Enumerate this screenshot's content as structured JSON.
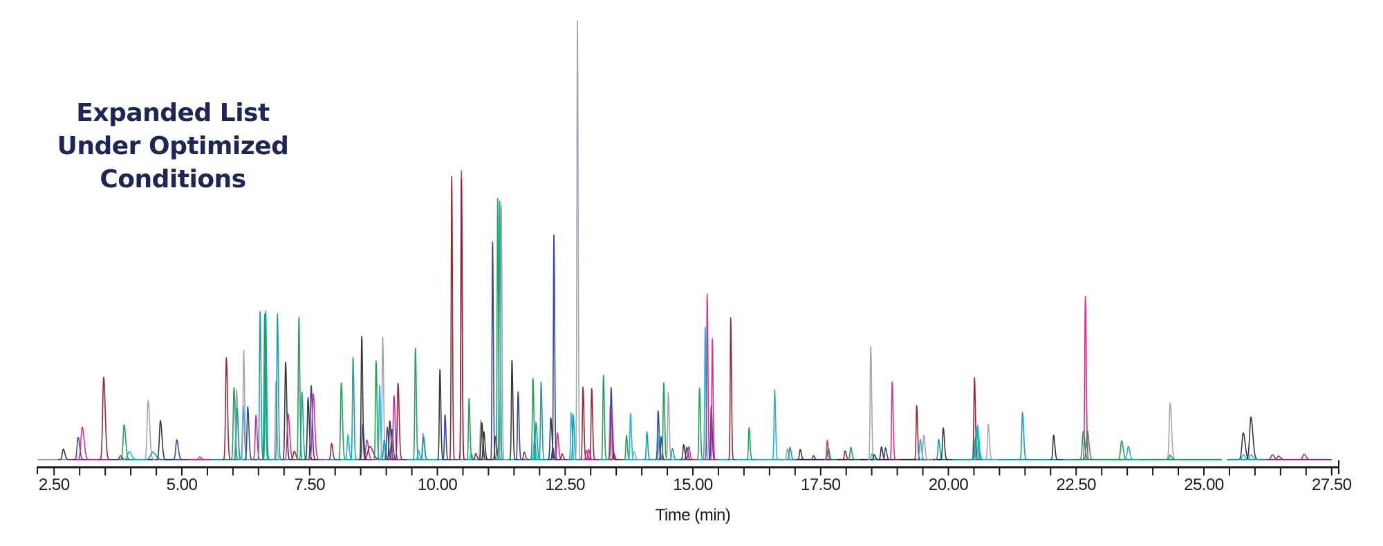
{
  "title": {
    "lines": [
      "Expanded List",
      "Under Optimized",
      "Conditions"
    ]
  },
  "axis": {
    "x_title": "Time (min)",
    "tick_labels": [
      "2.50",
      "5.00",
      "7.50",
      "10.00",
      "12.50",
      "15.00",
      "17.50",
      "20.00",
      "22.50",
      "25.00",
      "27.50"
    ]
  },
  "colors": {
    "title": "#1c2755",
    "axis": "#1a1a1a",
    "maroon": "#8b1f2b",
    "magenta": "#e0208a",
    "green": "#0fa14a",
    "cyan": "#12b0e0",
    "teal": "#0a9aa8",
    "navy": "#2a3aa0",
    "grey": "#9aa3ad",
    "black": "#2b2b2b",
    "purple": "#8a2a7a"
  },
  "chart_data": {
    "type": "line",
    "title": "Expanded List Under Optimized Conditions",
    "xlabel": "Time (min)",
    "ylabel": "",
    "xlim": [
      2.18,
      27.62
    ],
    "ylim": [
      0,
      100
    ],
    "grid": false,
    "legend": "none",
    "x_ticks": [
      2.5,
      5.0,
      7.5,
      10.0,
      12.5,
      15.0,
      17.5,
      20.0,
      22.5,
      25.0,
      27.5
    ],
    "minor_tick_step": 0.5,
    "y_units": "relative intensity (% of tallest peak)",
    "peaks": [
      {
        "t": 2.68,
        "h": 2.4,
        "color": "black",
        "w": 0.02
      },
      {
        "t": 2.97,
        "h": 5.1,
        "color": "navy",
        "w": 0.02
      },
      {
        "t": 3.05,
        "h": 7.4,
        "color": "magenta",
        "w": 0.025
      },
      {
        "t": 3.47,
        "h": 18.8,
        "color": "maroon",
        "w": 0.02
      },
      {
        "t": 3.8,
        "h": 0.9,
        "color": "maroon",
        "w": 0.02
      },
      {
        "t": 3.87,
        "h": 7.9,
        "color": "green",
        "w": 0.02
      },
      {
        "t": 3.97,
        "h": 1.8,
        "color": "cyan",
        "w": 0.03
      },
      {
        "t": 4.34,
        "h": 13.5,
        "color": "grey",
        "w": 0.02
      },
      {
        "t": 4.43,
        "h": 1.7,
        "color": "teal",
        "w": 0.04
      },
      {
        "t": 4.58,
        "h": 8.9,
        "color": "black",
        "w": 0.02
      },
      {
        "t": 4.9,
        "h": 4.5,
        "color": "navy",
        "w": 0.02
      },
      {
        "t": 5.35,
        "h": 0.6,
        "color": "magenta",
        "w": 0.02
      },
      {
        "t": 5.87,
        "h": 23.2,
        "color": "maroon",
        "w": 0.015
      },
      {
        "t": 6.02,
        "h": 16.4,
        "color": "green",
        "w": 0.015
      },
      {
        "t": 6.07,
        "h": 15.9,
        "color": "grey",
        "w": 0.015
      },
      {
        "t": 6.08,
        "h": 11.7,
        "color": "teal",
        "w": 0.015
      },
      {
        "t": 6.2,
        "h": 12.3,
        "color": "cyan",
        "w": 0.015
      },
      {
        "t": 6.21,
        "h": 24.9,
        "color": "grey",
        "w": 0.012
      },
      {
        "t": 6.29,
        "h": 12.0,
        "color": "navy",
        "w": 0.015
      },
      {
        "t": 6.45,
        "h": 10.1,
        "color": "magenta",
        "w": 0.015
      },
      {
        "t": 6.53,
        "h": 33.7,
        "color": "teal",
        "w": 0.012
      },
      {
        "t": 6.62,
        "h": 33.2,
        "color": "green",
        "w": 0.012
      },
      {
        "t": 6.64,
        "h": 33.9,
        "color": "teal",
        "w": 0.012
      },
      {
        "t": 6.84,
        "h": 17.7,
        "color": "grey",
        "w": 0.012
      },
      {
        "t": 6.87,
        "h": 33.2,
        "color": "teal",
        "w": 0.012
      },
      {
        "t": 7.03,
        "h": 22.2,
        "color": "black",
        "w": 0.015
      },
      {
        "t": 7.08,
        "h": 10.4,
        "color": "magenta",
        "w": 0.02
      },
      {
        "t": 7.2,
        "h": 1.9,
        "color": "maroon",
        "w": 0.02
      },
      {
        "t": 7.29,
        "h": 32.4,
        "color": "green",
        "w": 0.012
      },
      {
        "t": 7.35,
        "h": 15.4,
        "color": "teal",
        "w": 0.015
      },
      {
        "t": 7.47,
        "h": 14.1,
        "color": "black",
        "w": 0.015
      },
      {
        "t": 7.53,
        "h": 16.9,
        "color": "navy",
        "w": 0.015
      },
      {
        "t": 7.57,
        "h": 15.0,
        "color": "magenta",
        "w": 0.02
      },
      {
        "t": 7.93,
        "h": 3.7,
        "color": "maroon",
        "w": 0.015
      },
      {
        "t": 8.12,
        "h": 17.5,
        "color": "green",
        "w": 0.015
      },
      {
        "t": 8.25,
        "h": 5.6,
        "color": "cyan",
        "w": 0.015
      },
      {
        "t": 8.35,
        "h": 23.3,
        "color": "teal",
        "w": 0.012
      },
      {
        "t": 8.52,
        "h": 28.1,
        "color": "black",
        "w": 0.012
      },
      {
        "t": 8.54,
        "h": 8.0,
        "color": "navy",
        "w": 0.015
      },
      {
        "t": 8.62,
        "h": 4.5,
        "color": "magenta",
        "w": 0.02
      },
      {
        "t": 8.68,
        "h": 3.0,
        "color": "maroon",
        "w": 0.04
      },
      {
        "t": 8.8,
        "h": 22.5,
        "color": "green",
        "w": 0.012
      },
      {
        "t": 8.87,
        "h": 16.9,
        "color": "cyan",
        "w": 0.012
      },
      {
        "t": 8.93,
        "h": 27.9,
        "color": "grey",
        "w": 0.012
      },
      {
        "t": 8.96,
        "h": 4.5,
        "color": "teal",
        "w": 0.015
      },
      {
        "t": 9.02,
        "h": 7.4,
        "color": "navy",
        "w": 0.015
      },
      {
        "t": 9.07,
        "h": 8.8,
        "color": "black",
        "w": 0.015
      },
      {
        "t": 9.11,
        "h": 6.8,
        "color": "navy",
        "w": 0.015
      },
      {
        "t": 9.15,
        "h": 14.6,
        "color": "magenta",
        "w": 0.015
      },
      {
        "t": 9.23,
        "h": 17.4,
        "color": "maroon",
        "w": 0.015
      },
      {
        "t": 9.57,
        "h": 25.4,
        "color": "green",
        "w": 0.012
      },
      {
        "t": 9.63,
        "h": 2.1,
        "color": "cyan",
        "w": 0.015
      },
      {
        "t": 9.72,
        "h": 6.0,
        "color": "grey",
        "w": 0.015
      },
      {
        "t": 9.73,
        "h": 5.2,
        "color": "teal",
        "w": 0.015
      },
      {
        "t": 10.05,
        "h": 20.5,
        "color": "black",
        "w": 0.012
      },
      {
        "t": 10.15,
        "h": 10.2,
        "color": "navy",
        "w": 0.012
      },
      {
        "t": 10.28,
        "h": 64.5,
        "color": "maroon",
        "w": 0.01
      },
      {
        "t": 10.47,
        "h": 65.8,
        "color": "magenta",
        "w": 0.01
      },
      {
        "t": 10.47,
        "h": 64.0,
        "color": "maroon",
        "w": 0.01
      },
      {
        "t": 10.62,
        "h": 13.9,
        "color": "green",
        "w": 0.012
      },
      {
        "t": 10.66,
        "h": 1.4,
        "color": "cyan",
        "w": 0.015
      },
      {
        "t": 10.75,
        "h": 1.4,
        "color": "maroon",
        "w": 0.015
      },
      {
        "t": 10.85,
        "h": 9.0,
        "color": "grey",
        "w": 0.015
      },
      {
        "t": 10.87,
        "h": 8.4,
        "color": "black",
        "w": 0.015
      },
      {
        "t": 10.91,
        "h": 6.3,
        "color": "black",
        "w": 0.015
      },
      {
        "t": 11.08,
        "h": 49.6,
        "color": "navy",
        "w": 0.01
      },
      {
        "t": 11.14,
        "h": 5.3,
        "color": "maroon",
        "w": 0.015
      },
      {
        "t": 11.18,
        "h": 59.5,
        "color": "green",
        "w": 0.01
      },
      {
        "t": 11.22,
        "h": 58.9,
        "color": "teal",
        "w": 0.01
      },
      {
        "t": 11.25,
        "h": 58.0,
        "color": "grey",
        "w": 0.01
      },
      {
        "t": 11.46,
        "h": 22.6,
        "color": "black",
        "w": 0.012
      },
      {
        "t": 11.58,
        "h": 15.4,
        "color": "navy",
        "w": 0.012
      },
      {
        "t": 11.7,
        "h": 1.7,
        "color": "maroon",
        "w": 0.015
      },
      {
        "t": 11.87,
        "h": 18.5,
        "color": "green",
        "w": 0.012
      },
      {
        "t": 11.9,
        "h": 4.6,
        "color": "cyan",
        "w": 0.015
      },
      {
        "t": 11.93,
        "h": 8.4,
        "color": "teal",
        "w": 0.015
      },
      {
        "t": 12.03,
        "h": 17.7,
        "color": "teal",
        "w": 0.012
      },
      {
        "t": 12.22,
        "h": 9.5,
        "color": "black",
        "w": 0.015
      },
      {
        "t": 12.26,
        "h": 2.8,
        "color": "navy",
        "w": 0.015
      },
      {
        "t": 12.28,
        "h": 51.2,
        "color": "navy",
        "w": 0.01
      },
      {
        "t": 12.35,
        "h": 6.1,
        "color": "magenta",
        "w": 0.015
      },
      {
        "t": 12.44,
        "h": 1.3,
        "color": "maroon",
        "w": 0.015
      },
      {
        "t": 12.62,
        "h": 10.7,
        "color": "cyan",
        "w": 0.012
      },
      {
        "t": 12.66,
        "h": 10.2,
        "color": "teal",
        "w": 0.012
      },
      {
        "t": 12.74,
        "h": 100.0,
        "color": "grey",
        "w": 0.01
      },
      {
        "t": 12.85,
        "h": 16.5,
        "color": "maroon",
        "w": 0.012
      },
      {
        "t": 12.92,
        "h": 2.1,
        "color": "magenta",
        "w": 0.015
      },
      {
        "t": 12.96,
        "h": 2.3,
        "color": "magenta",
        "w": 0.015
      },
      {
        "t": 13.02,
        "h": 16.2,
        "color": "maroon",
        "w": 0.012
      },
      {
        "t": 13.25,
        "h": 19.2,
        "color": "green",
        "w": 0.012
      },
      {
        "t": 13.38,
        "h": 12.3,
        "color": "grey",
        "w": 0.012
      },
      {
        "t": 13.4,
        "h": 16.4,
        "color": "navy",
        "w": 0.012
      },
      {
        "t": 13.41,
        "h": 11.3,
        "color": "magenta",
        "w": 0.015
      },
      {
        "t": 13.45,
        "h": 1.4,
        "color": "maroon",
        "w": 0.015
      },
      {
        "t": 13.7,
        "h": 5.5,
        "color": "green",
        "w": 0.012
      },
      {
        "t": 13.78,
        "h": 10.5,
        "color": "cyan",
        "w": 0.012
      },
      {
        "t": 13.85,
        "h": 1.8,
        "color": "grey",
        "w": 0.015
      },
      {
        "t": 14.1,
        "h": 6.3,
        "color": "teal",
        "w": 0.012
      },
      {
        "t": 14.32,
        "h": 11.1,
        "color": "navy",
        "w": 0.012
      },
      {
        "t": 14.34,
        "h": 6.1,
        "color": "cyan",
        "w": 0.012
      },
      {
        "t": 14.38,
        "h": 5.2,
        "color": "maroon",
        "w": 0.012
      },
      {
        "t": 14.43,
        "h": 17.5,
        "color": "green",
        "w": 0.012
      },
      {
        "t": 14.52,
        "h": 15.3,
        "color": "grey",
        "w": 0.012
      },
      {
        "t": 14.6,
        "h": 2.5,
        "color": "teal",
        "w": 0.015
      },
      {
        "t": 14.82,
        "h": 3.4,
        "color": "black",
        "w": 0.015
      },
      {
        "t": 14.88,
        "h": 2.8,
        "color": "navy",
        "w": 0.015
      },
      {
        "t": 14.92,
        "h": 2.9,
        "color": "magenta",
        "w": 0.015
      },
      {
        "t": 15.13,
        "h": 16.3,
        "color": "green",
        "w": 0.012
      },
      {
        "t": 15.24,
        "h": 30.2,
        "color": "cyan",
        "w": 0.01
      },
      {
        "t": 15.28,
        "h": 37.7,
        "color": "magenta",
        "w": 0.01
      },
      {
        "t": 15.36,
        "h": 12.3,
        "color": "navy",
        "w": 0.012
      },
      {
        "t": 15.38,
        "h": 27.6,
        "color": "magenta",
        "w": 0.01
      },
      {
        "t": 15.74,
        "h": 32.3,
        "color": "maroon",
        "w": 0.01
      },
      {
        "t": 16.1,
        "h": 7.3,
        "color": "green",
        "w": 0.012
      },
      {
        "t": 16.6,
        "h": 15.9,
        "color": "cyan",
        "w": 0.012
      },
      {
        "t": 16.85,
        "h": 2.5,
        "color": "grey",
        "w": 0.015
      },
      {
        "t": 16.9,
        "h": 2.8,
        "color": "teal",
        "w": 0.015
      },
      {
        "t": 17.1,
        "h": 2.3,
        "color": "black",
        "w": 0.015
      },
      {
        "t": 17.36,
        "h": 0.9,
        "color": "navy",
        "w": 0.015
      },
      {
        "t": 17.63,
        "h": 4.4,
        "color": "magenta",
        "w": 0.012
      },
      {
        "t": 17.65,
        "h": 2.7,
        "color": "green",
        "w": 0.015
      },
      {
        "t": 17.98,
        "h": 2.0,
        "color": "maroon",
        "w": 0.015
      },
      {
        "t": 18.09,
        "h": 2.8,
        "color": "green",
        "w": 0.015
      },
      {
        "t": 18.48,
        "h": 25.8,
        "color": "grey",
        "w": 0.012
      },
      {
        "t": 18.5,
        "h": 1.3,
        "color": "cyan",
        "w": 0.015
      },
      {
        "t": 18.55,
        "h": 1.1,
        "color": "black",
        "w": 0.015
      },
      {
        "t": 18.69,
        "h": 2.9,
        "color": "black",
        "w": 0.015
      },
      {
        "t": 18.77,
        "h": 2.7,
        "color": "navy",
        "w": 0.015
      },
      {
        "t": 18.9,
        "h": 17.7,
        "color": "magenta",
        "w": 0.012
      },
      {
        "t": 19.38,
        "h": 12.3,
        "color": "maroon",
        "w": 0.012
      },
      {
        "t": 19.45,
        "h": 4.6,
        "color": "cyan",
        "w": 0.015
      },
      {
        "t": 19.52,
        "h": 5.6,
        "color": "grey",
        "w": 0.015
      },
      {
        "t": 19.81,
        "h": 4.6,
        "color": "teal",
        "w": 0.015
      },
      {
        "t": 19.9,
        "h": 7.2,
        "color": "black",
        "w": 0.015
      },
      {
        "t": 20.51,
        "h": 18.7,
        "color": "maroon",
        "w": 0.012
      },
      {
        "t": 20.53,
        "h": 5.0,
        "color": "cyan",
        "w": 0.02
      },
      {
        "t": 20.55,
        "h": 7.2,
        "color": "green",
        "w": 0.02
      },
      {
        "t": 20.57,
        "h": 7.8,
        "color": "cyan",
        "w": 0.02
      },
      {
        "t": 20.78,
        "h": 8.1,
        "color": "grey",
        "w": 0.015
      },
      {
        "t": 21.45,
        "h": 10.8,
        "color": "teal",
        "w": 0.015
      },
      {
        "t": 22.06,
        "h": 5.6,
        "color": "black",
        "w": 0.015
      },
      {
        "t": 22.64,
        "h": 6.4,
        "color": "green",
        "w": 0.02
      },
      {
        "t": 22.68,
        "h": 37.2,
        "color": "magenta",
        "w": 0.012
      },
      {
        "t": 22.72,
        "h": 6.6,
        "color": "green",
        "w": 0.02
      },
      {
        "t": 23.39,
        "h": 4.3,
        "color": "green",
        "w": 0.02
      },
      {
        "t": 23.52,
        "h": 3.0,
        "color": "cyan",
        "w": 0.02
      },
      {
        "t": 24.34,
        "h": 12.9,
        "color": "grey",
        "w": 0.018
      },
      {
        "t": 24.34,
        "h": 1.0,
        "color": "green",
        "w": 0.02
      },
      {
        "t": 25.77,
        "h": 6.1,
        "color": "black",
        "w": 0.025
      },
      {
        "t": 25.77,
        "h": 1.1,
        "color": "cyan",
        "w": 0.025
      },
      {
        "t": 25.92,
        "h": 9.7,
        "color": "black",
        "w": 0.025
      },
      {
        "t": 25.92,
        "h": 1.1,
        "color": "cyan",
        "w": 0.025
      },
      {
        "t": 26.34,
        "h": 1.1,
        "color": "purple",
        "w": 0.025
      },
      {
        "t": 26.46,
        "h": 0.8,
        "color": "purple",
        "w": 0.025
      },
      {
        "t": 26.96,
        "h": 1.2,
        "color": "purple",
        "w": 0.025
      }
    ],
    "baseline_segments": [
      {
        "from": 2.18,
        "to": 2.85,
        "color": "grey"
      },
      {
        "from": 2.85,
        "to": 3.55,
        "color": "magenta"
      },
      {
        "from": 3.55,
        "to": 4.25,
        "color": "teal"
      },
      {
        "from": 4.25,
        "to": 4.95,
        "color": "navy"
      },
      {
        "from": 4.95,
        "to": 5.55,
        "color": "magenta"
      },
      {
        "from": 5.55,
        "to": 6.0,
        "color": "teal"
      },
      {
        "from": 6.0,
        "to": 7.0,
        "color": "teal"
      },
      {
        "from": 7.0,
        "to": 16.9,
        "color": "cyan"
      },
      {
        "from": 16.9,
        "to": 20.0,
        "color": "black"
      },
      {
        "from": 20.0,
        "to": 22.4,
        "color": "teal"
      },
      {
        "from": 22.4,
        "to": 24.2,
        "color": "green"
      },
      {
        "from": 24.2,
        "to": 25.35,
        "color": "green"
      },
      {
        "from": 25.45,
        "to": 26.0,
        "color": "teal"
      },
      {
        "from": 26.0,
        "to": 27.5,
        "color": "purple"
      }
    ]
  }
}
